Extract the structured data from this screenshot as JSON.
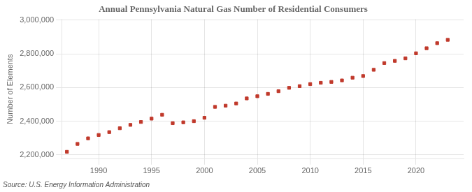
{
  "chart_data": {
    "type": "scatter",
    "title": "Annual Pennsylvania Natural Gas Number of Residential Consumers",
    "ylabel": "Number of Elements",
    "source": "Source: U.S. Energy Information Administration",
    "x": [
      1987,
      1988,
      1989,
      1990,
      1991,
      1992,
      1993,
      1994,
      1995,
      1996,
      1997,
      1998,
      1999,
      2000,
      2001,
      2002,
      2003,
      2004,
      2005,
      2006,
      2007,
      2008,
      2009,
      2010,
      2011,
      2012,
      2013,
      2014,
      2015,
      2016,
      2017,
      2018,
      2019,
      2020,
      2021,
      2022,
      2023
    ],
    "values": [
      2218000,
      2265000,
      2298000,
      2318000,
      2335000,
      2358000,
      2378000,
      2395000,
      2415000,
      2438000,
      2388000,
      2393000,
      2400000,
      2420000,
      2485000,
      2492000,
      2505000,
      2535000,
      2548000,
      2562000,
      2578000,
      2598000,
      2608000,
      2620000,
      2628000,
      2633000,
      2642000,
      2658000,
      2668000,
      2705000,
      2745000,
      2758000,
      2773000,
      2803000,
      2833000,
      2863000,
      2883000
    ],
    "color": "#c0392b",
    "marker": "square",
    "xlim": [
      1986.5,
      2024.5
    ],
    "xticks": [
      1990,
      1995,
      2000,
      2005,
      2010,
      2015,
      2020
    ],
    "ylim": [
      2175000,
      3005000
    ],
    "yticks": [
      {
        "value": 2200000,
        "label": "2,200,000"
      },
      {
        "value": 2400000,
        "label": "2,400,000"
      },
      {
        "value": 2600000,
        "label": "2,600,000"
      },
      {
        "value": 2800000,
        "label": "2,800,000"
      },
      {
        "value": 3000000,
        "label": "3,000,000"
      }
    ],
    "grid": true
  }
}
